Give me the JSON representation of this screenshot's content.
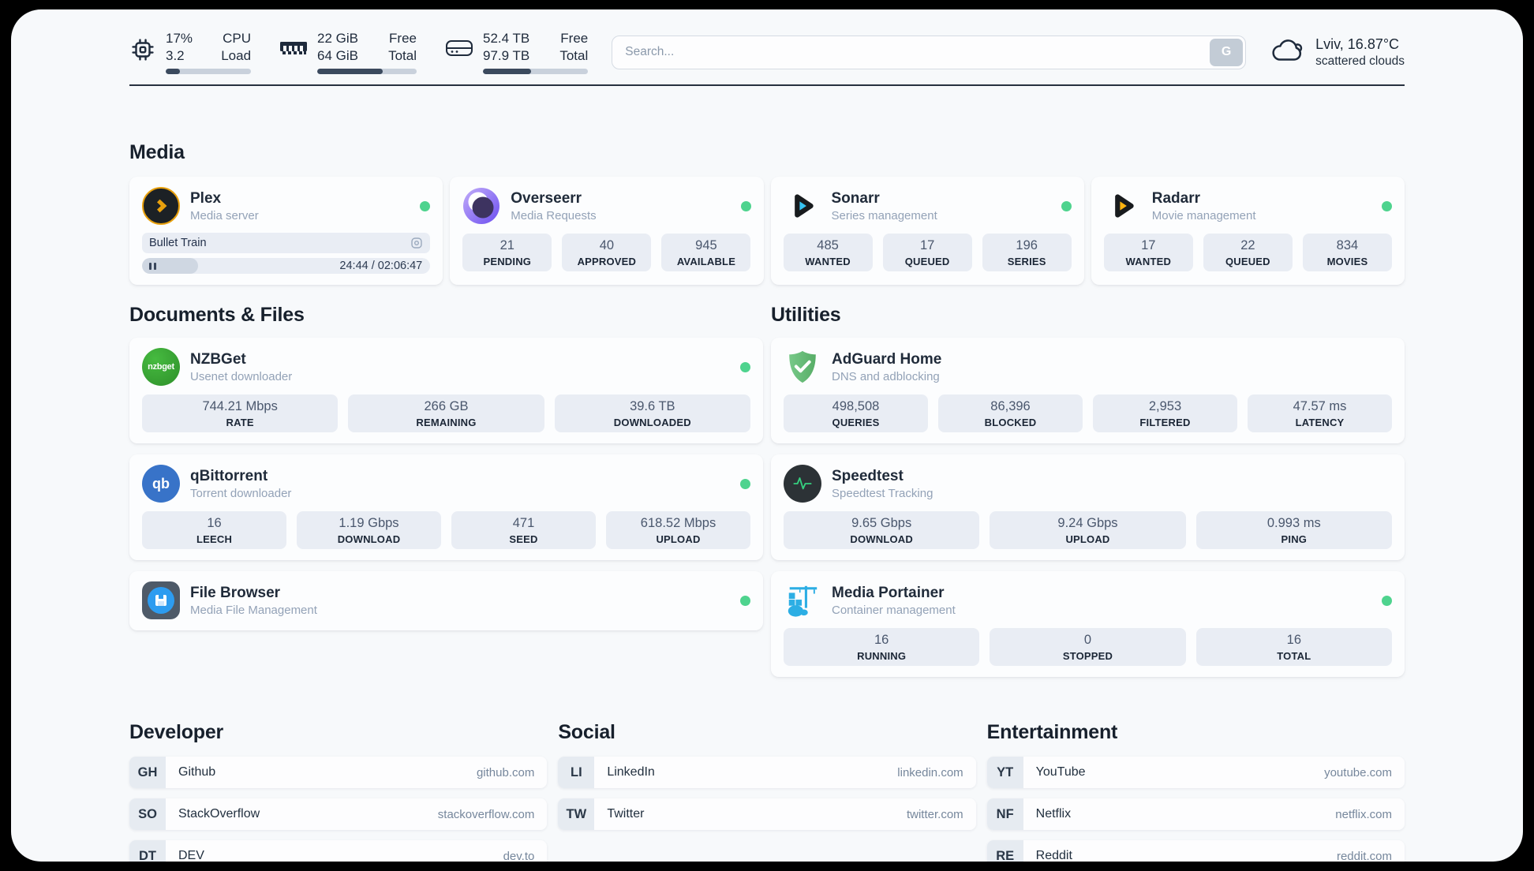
{
  "header": {
    "stats": [
      {
        "name": "cpu",
        "values": [
          "17%",
          "3.2"
        ],
        "labels": [
          "CPU",
          "Load"
        ],
        "progress": 17
      },
      {
        "name": "memory",
        "values": [
          "22 GiB",
          "64 GiB"
        ],
        "labels": [
          "Free",
          "Total"
        ],
        "progress": 66
      },
      {
        "name": "storage",
        "values": [
          "52.4 TB",
          "97.9 TB"
        ],
        "labels": [
          "Free",
          "Total"
        ],
        "progress": 46
      }
    ],
    "search": {
      "placeholder": "Search...",
      "engine_button": "G"
    },
    "weather": {
      "summary": "Lviv, 16.87°C",
      "condition": "scattered clouds"
    }
  },
  "sections": {
    "media": "Media",
    "documents": "Documents & Files",
    "utilities": "Utilities",
    "developer": "Developer",
    "social": "Social",
    "entertainment": "Entertainment"
  },
  "apps": {
    "plex": {
      "name": "Plex",
      "description": "Media server",
      "now_playing": {
        "title": "Bullet Train",
        "time_display": "24:44 / 02:06:47",
        "progress": 19.5
      }
    },
    "overseerr": {
      "name": "Overseerr",
      "description": "Media Requests",
      "stats": [
        {
          "value": "21",
          "label": "PENDING"
        },
        {
          "value": "40",
          "label": "APPROVED"
        },
        {
          "value": "945",
          "label": "AVAILABLE"
        }
      ]
    },
    "sonarr": {
      "name": "Sonarr",
      "description": "Series management",
      "stats": [
        {
          "value": "485",
          "label": "WANTED"
        },
        {
          "value": "17",
          "label": "QUEUED"
        },
        {
          "value": "196",
          "label": "SERIES"
        }
      ]
    },
    "radarr": {
      "name": "Radarr",
      "description": "Movie management",
      "stats": [
        {
          "value": "17",
          "label": "WANTED"
        },
        {
          "value": "22",
          "label": "QUEUED"
        },
        {
          "value": "834",
          "label": "MOVIES"
        }
      ]
    },
    "nzbget": {
      "name": "NZBGet",
      "description": "Usenet downloader",
      "icon_text": "nzbget",
      "stats": [
        {
          "value": "744.21 Mbps",
          "label": "RATE"
        },
        {
          "value": "266 GB",
          "label": "REMAINING"
        },
        {
          "value": "39.6 TB",
          "label": "DOWNLOADED"
        }
      ]
    },
    "qbittorrent": {
      "name": "qBittorrent",
      "description": "Torrent downloader",
      "icon_text": "qb",
      "stats": [
        {
          "value": "16",
          "label": "LEECH"
        },
        {
          "value": "1.19 Gbps",
          "label": "DOWNLOAD"
        },
        {
          "value": "471",
          "label": "SEED"
        },
        {
          "value": "618.52 Mbps",
          "label": "UPLOAD"
        }
      ]
    },
    "filebrowser": {
      "name": "File Browser",
      "description": "Media File Management"
    },
    "adguard": {
      "name": "AdGuard Home",
      "description": "DNS and adblocking",
      "stats": [
        {
          "value": "498,508",
          "label": "QUERIES"
        },
        {
          "value": "86,396",
          "label": "BLOCKED"
        },
        {
          "value": "2,953",
          "label": "FILTERED"
        },
        {
          "value": "47.57 ms",
          "label": "LATENCY"
        }
      ]
    },
    "speedtest": {
      "name": "Speedtest",
      "description": "Speedtest Tracking",
      "stats": [
        {
          "value": "9.65 Gbps",
          "label": "DOWNLOAD"
        },
        {
          "value": "9.24 Gbps",
          "label": "UPLOAD"
        },
        {
          "value": "0.993 ms",
          "label": "PING"
        }
      ]
    },
    "portainer": {
      "name": "Media Portainer",
      "description": "Container management",
      "stats": [
        {
          "value": "16",
          "label": "RUNNING"
        },
        {
          "value": "0",
          "label": "STOPPED"
        },
        {
          "value": "16",
          "label": "TOTAL"
        }
      ]
    }
  },
  "bookmarks": {
    "developer": [
      {
        "abbr": "GH",
        "name": "Github",
        "url": "github.com"
      },
      {
        "abbr": "SO",
        "name": "StackOverflow",
        "url": "stackoverflow.com"
      },
      {
        "abbr": "DT",
        "name": "DEV",
        "url": "dev.to"
      }
    ],
    "social": [
      {
        "abbr": "LI",
        "name": "LinkedIn",
        "url": "linkedin.com"
      },
      {
        "abbr": "TW",
        "name": "Twitter",
        "url": "twitter.com"
      }
    ],
    "entertainment": [
      {
        "abbr": "YT",
        "name": "YouTube",
        "url": "youtube.com"
      },
      {
        "abbr": "NF",
        "name": "Netflix",
        "url": "netflix.com"
      },
      {
        "abbr": "RE",
        "name": "Reddit",
        "url": "reddit.com"
      }
    ]
  },
  "colors": {
    "accent_green": "#4ed38e",
    "plex_amber": "#e8a00d",
    "progress_fill": "#3b4a5e"
  }
}
